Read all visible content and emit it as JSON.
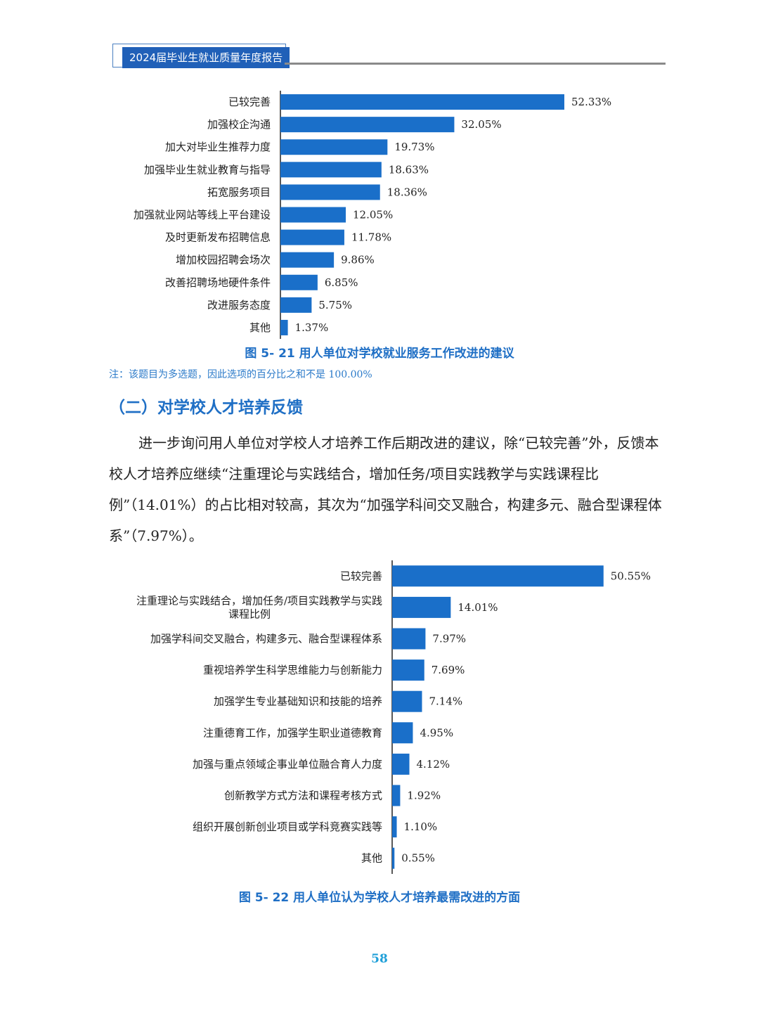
{
  "header": {
    "title": "2024届毕业生就业质量年度报告"
  },
  "charts": [],
  "chart_data": [
    {
      "type": "bar",
      "orientation": "horizontal",
      "caption": "图 5- 21  用人单位对学校就业服务工作改进的建议",
      "categories": [
        "已较完善",
        "加强校企沟通",
        "加大对毕业生推荐力度",
        "加强毕业生就业教育与指导",
        "拓宽服务项目",
        "加强就业网站等线上平台建设",
        "及时更新发布招聘信息",
        "增加校园招聘会场次",
        "改善招聘场地硬件条件",
        "改进服务态度",
        "其他"
      ],
      "values": [
        52.33,
        32.05,
        19.73,
        18.63,
        18.36,
        12.05,
        11.78,
        9.86,
        6.85,
        5.75,
        1.37
      ],
      "value_labels": [
        "52.33%",
        "32.05%",
        "19.73%",
        "18.63%",
        "18.36%",
        "12.05%",
        "11.78%",
        "9.86%",
        "6.85%",
        "5.75%",
        "1.37%"
      ],
      "bar_color": "#1a6fc9"
    },
    {
      "type": "bar",
      "orientation": "horizontal",
      "caption": "图 5- 22  用人单位认为学校人才培养最需改进的方面",
      "categories": [
        "已较完善",
        "注重理论与实践结合，增加任务/项目实践教学与实践课程比例",
        "加强学科间交叉融合，构建多元、融合型课程体系",
        "重视培养学生科学思维能力与创新能力",
        "加强学生专业基础知识和技能的培养",
        "注重德育工作，加强学生职业道德教育",
        "加强与重点领域企事业单位融合育人力度",
        "创新教学方式方法和课程考核方式",
        "组织开展创新创业项目或学科竞赛实践等",
        "其他"
      ],
      "category_display_lines": [
        [
          "已较完善"
        ],
        [
          "注重理论与实践结合，增加任务/项目实践教学与实践",
          "课程比例"
        ],
        [
          "加强学科间交叉融合，构建多元、融合型课程体系"
        ],
        [
          "重视培养学生科学思维能力与创新能力"
        ],
        [
          "加强学生专业基础知识和技能的培养"
        ],
        [
          "注重德育工作，加强学生职业道德教育"
        ],
        [
          "加强与重点领域企事业单位融合育人力度"
        ],
        [
          "创新教学方式方法和课程考核方式"
        ],
        [
          "组织开展创新创业项目或学科竞赛实践等"
        ],
        [
          "其他"
        ]
      ],
      "values": [
        50.55,
        14.01,
        7.97,
        7.69,
        7.14,
        4.95,
        4.12,
        1.92,
        1.1,
        0.55
      ],
      "value_labels": [
        "50.55%",
        "14.01%",
        "7.97%",
        "7.69%",
        "7.14%",
        "4.95%",
        "4.12%",
        "1.92%",
        "1.10%",
        "0.55%"
      ],
      "bar_color": "#1a6fc9"
    }
  ],
  "note": "注：该题目为多选题，因此选项的百分比之和不是 100.00%",
  "section_title": "（二）对学校人才培养反馈",
  "paragraph": "进一步询问用人单位对学校人才培养工作后期改进的建议，除“已较完善”外，反馈本校人才培养应继续“注重理论与实践结合，增加任务/项目实践教学与实践课程比例”（14.01%）的占比相对较高，其次为“加强学科间交叉融合，构建多元、融合型课程体系”（7.97%）。",
  "page_number": "58"
}
